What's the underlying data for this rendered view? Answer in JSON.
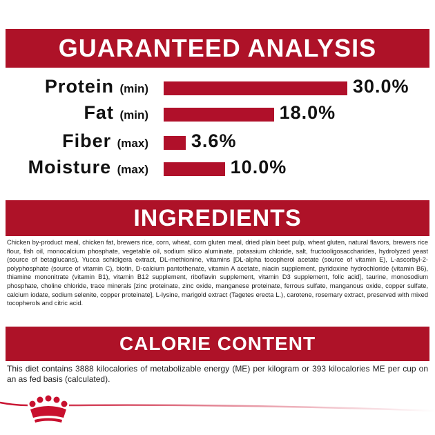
{
  "chart_data": {
    "type": "bar",
    "title": "GUARANTEED ANALYSIS",
    "categories": [
      "Protein",
      "Fat",
      "Fiber",
      "Moisture"
    ],
    "qualifiers": [
      "(min)",
      "(min)",
      "(max)",
      "(max)"
    ],
    "values": [
      30.0,
      18.0,
      3.6,
      10.0
    ],
    "value_labels": [
      "30.0%",
      "18.0%",
      "3.6%",
      "10.0%"
    ],
    "color": "#b0102a"
  },
  "ingredients": {
    "title": "INGREDIENTS",
    "text": "Chicken by-product meal, chicken fat, brewers rice, corn, wheat, corn gluten meal, dried plain beet pulp, wheat gluten, natural flavors, brewers rice flour, fish oil, monocalcium phosphate, vegetable oil, sodium silico aluminate, potassium chloride, salt, fructooligosaccharides, hydrolyzed yeast (source of betaglucans), Yucca schidigera extract, DL-methionine, vitamins [DL-alpha tocopherol acetate (source of vitamin E), L-ascorbyl-2-polyphosphate (source of vitamin C), biotin, D-calcium pantothenate, vitamin A acetate, niacin supplement, pyridoxine hydrochloride (vitamin B6), thiamine mononitrate (vitamin B1), vitamin B12 supplement, riboflavin supplement, vitamin D3 supplement, folic acid], taurine, monosodium phosphate, choline chloride, trace minerals [zinc proteinate, zinc oxide, manganese proteinate, ferrous sulfate, manganous oxide, copper sulfate, calcium iodate, sodium selenite, copper proteinate], L-lysine, marigold extract (Tagetes erecta L.), carotene, rosemary extract, preserved with mixed tocopherols and citric acid."
  },
  "calories": {
    "title": "CALORIE CONTENT",
    "text": "This diet contains 3888 kilocalories of metabolizable energy (ME) per kilogram or 393 kilocalories ME per cup on an as fed basis (calculated)."
  }
}
